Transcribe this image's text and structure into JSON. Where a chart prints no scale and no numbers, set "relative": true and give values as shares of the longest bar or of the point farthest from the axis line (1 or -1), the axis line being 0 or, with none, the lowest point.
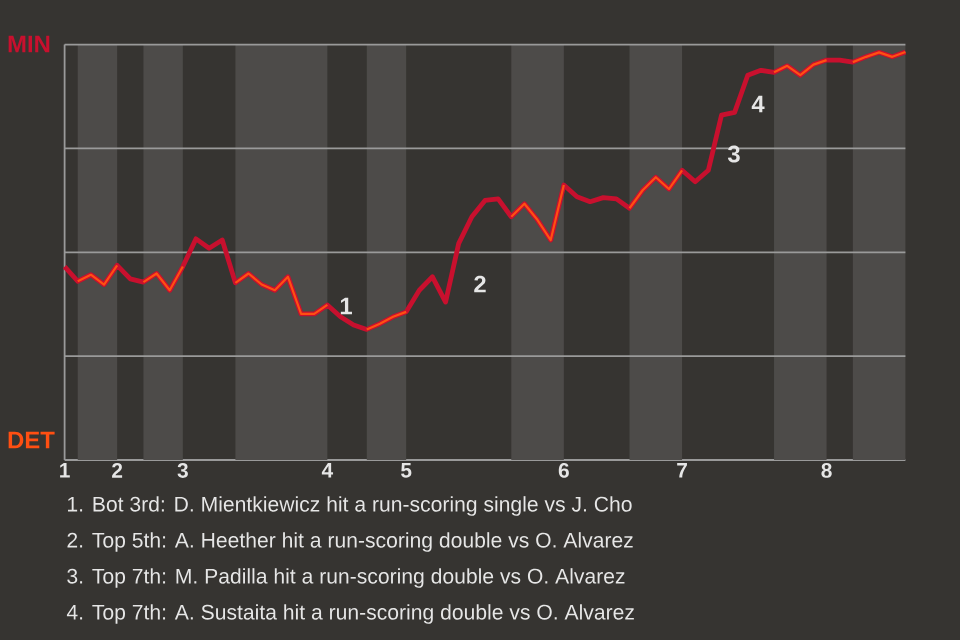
{
  "chart_data": {
    "type": "line",
    "relative": true,
    "categories": [
      "1",
      null,
      null,
      null,
      "2",
      null,
      null,
      null,
      null,
      "3",
      null,
      null,
      null,
      null,
      null,
      null,
      null,
      null,
      null,
      null,
      "4",
      null,
      null,
      null,
      null,
      null,
      "5",
      null,
      null,
      null,
      null,
      null,
      null,
      null,
      null,
      null,
      null,
      null,
      "6",
      null,
      null,
      null,
      null,
      null,
      null,
      null,
      null,
      "7",
      null,
      null,
      null,
      null,
      null,
      null,
      null,
      null,
      null,
      null,
      "8",
      null,
      null,
      null,
      null,
      null,
      null
    ],
    "grid": "y",
    "marker": "none",
    "line_style": "solid",
    "series": [
      {
        "color": "#c8102e",
        "values": [
          0.474,
          0.438,
          0.454,
          0.43,
          0.477,
          0.444,
          0.436,
          0.457,
          0.416,
          0.474,
          0.542,
          0.519,
          0.539,
          0.434,
          0.457,
          0.43,
          0.416,
          0.449,
          0.358,
          0.358,
          0.38,
          0.351,
          0.331,
          0.32,
          0.334,
          0.351,
          0.363,
          0.416,
          0.449,
          0.387,
          0.531,
          0.596,
          0.636,
          0.64,
          0.596,
          0.628,
          0.588,
          0.539,
          0.674,
          0.645,
          0.633,
          0.643,
          0.64,
          0.617,
          0.661,
          0.693,
          0.664,
          0.71,
          0.682,
          0.71,
          0.845,
          0.852,
          0.943,
          0.955,
          0.95,
          0.966,
          0.943,
          0.969,
          0.98,
          0.98,
          0.975,
          0.988,
          0.999,
          0.988,
          1
        ]
      },
      {
        "color": "#ff4f12",
        "values": [
          null,
          0.438,
          0.454,
          0.43,
          0.477,
          null,
          0.436,
          0.457,
          0.416,
          0.474,
          null,
          null,
          null,
          0.434,
          0.457,
          0.43,
          0.416,
          0.449,
          0.358,
          0.358,
          0.38,
          null,
          null,
          0.32,
          0.334,
          0.351,
          0.363,
          null,
          null,
          null,
          null,
          null,
          null,
          null,
          0.596,
          0.628,
          0.588,
          0.539,
          0.674,
          null,
          null,
          null,
          null,
          0.617,
          0.661,
          0.693,
          0.664,
          0.71,
          null,
          null,
          null,
          null,
          null,
          null,
          0.95,
          0.966,
          0.943,
          0.969,
          0.98,
          null,
          0.975,
          0.988,
          0.999,
          0.988,
          1
        ]
      }
    ],
    "annotations": [
      "MIN",
      "DET",
      "1",
      "2",
      "3",
      "4",
      "1. Bot 3rd: D. Mientkiewicz hit a run-scoring single vs J. Cho",
      "2. Top 5th: A. Heether hit a run-scoring double vs O. Alvarez",
      "3. Top 7th: M. Padilla hit a run-scoring double vs O. Alvarez",
      "4. Top 7th: A. Sustaita hit a run-scoring double vs O. Alvarez"
    ]
  }
}
